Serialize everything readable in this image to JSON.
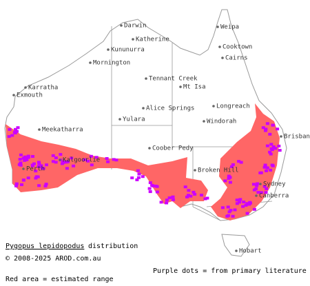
{
  "map": {
    "places": [
      "Darwin",
      "Weipa",
      "Katherine",
      "Kununurra",
      "Cooktown",
      "Cairns",
      "Mornington",
      "Tennant Creek",
      "Mt Isa",
      "Karratha",
      "Exmouth",
      "Longreach",
      "Alice Springs",
      "Yulara",
      "Windorah",
      "Meekatharra",
      "Coober Pedy",
      "Brisbane",
      "Kalgoorlie",
      "Perth",
      "Broken Hill",
      "Sydney",
      "Canberra",
      "Hobart"
    ]
  },
  "caption": {
    "species": "Pygopus lepidopodus",
    "suffix": "distribution",
    "copyright": "© 2008-2025 AROD.com.au",
    "legend_dots": "Purple dots = from primary literature",
    "legend_area": "Red area = estimated range"
  }
}
